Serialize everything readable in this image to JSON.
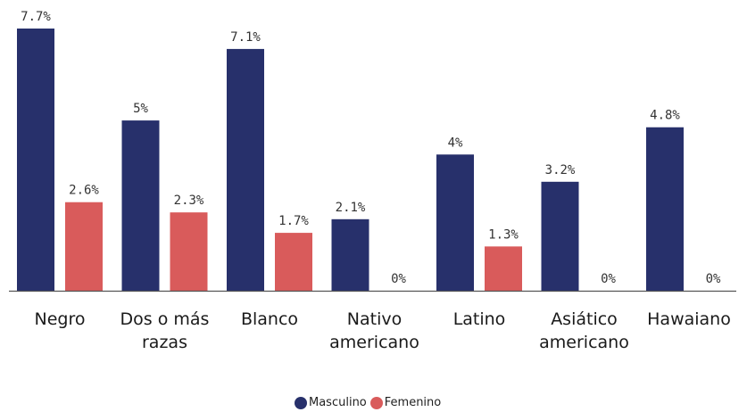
{
  "chart_data": {
    "type": "bar",
    "categories": [
      [
        "Negro"
      ],
      [
        "Dos o más",
        "razas"
      ],
      [
        "Blanco"
      ],
      [
        "Nativo",
        "americano"
      ],
      [
        "Latino"
      ],
      [
        "Asiático",
        "americano"
      ],
      [
        "Hawaiano"
      ]
    ],
    "series": [
      {
        "name": "Masculino",
        "color": "#27306b",
        "values": [
          7.7,
          5,
          7.1,
          2.1,
          4,
          3.2,
          4.8
        ],
        "labels": [
          "7.7%",
          "5%",
          "7.1%",
          "2.1%",
          "4%",
          "3.2%",
          "4.8%"
        ]
      },
      {
        "name": "Femenino",
        "color": "#d95b5b",
        "values": [
          2.6,
          2.3,
          1.7,
          0,
          1.3,
          0,
          0
        ],
        "labels": [
          "2.6%",
          "2.3%",
          "1.7%",
          "0%",
          "1.3%",
          "0%",
          "0%"
        ]
      }
    ],
    "ylim": [
      0,
      7.7
    ],
    "grid": false,
    "legend_position": "bottom-center"
  }
}
